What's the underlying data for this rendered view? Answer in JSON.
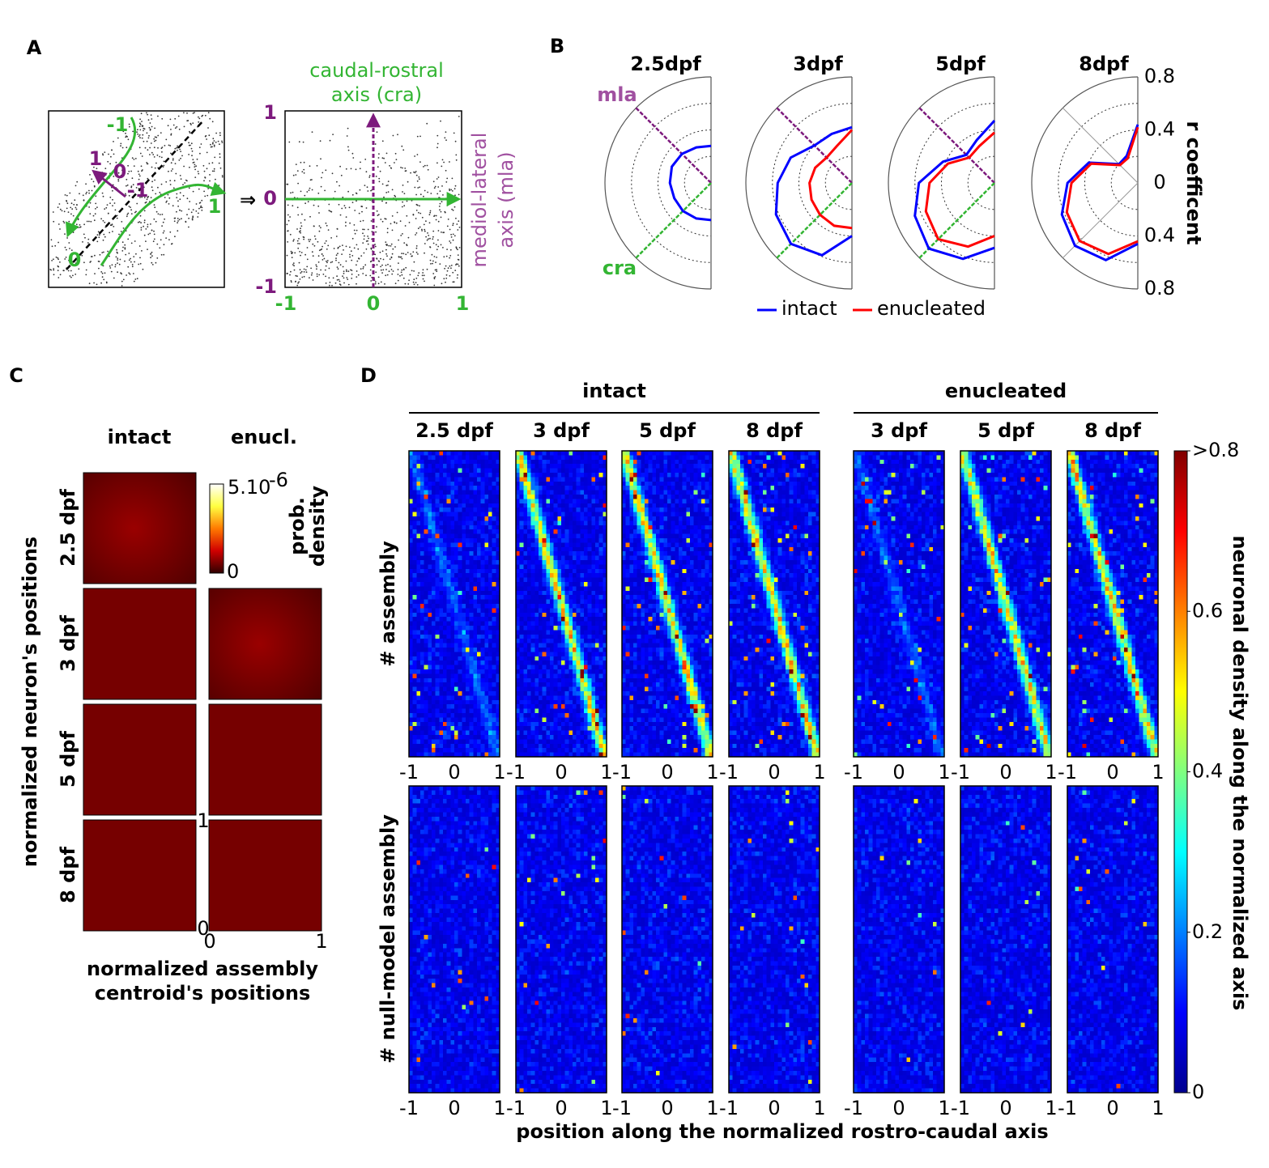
{
  "panel_a": {
    "label": "A",
    "sketch_labels": [
      "-1",
      "1",
      "0",
      "-1",
      "1",
      "0"
    ],
    "arrow": "⇒",
    "axis_title": [
      "caudal-rostral",
      "axis (cra)"
    ],
    "side_title": [
      "mediol-lateral",
      "axis (mla)"
    ],
    "yticks": [
      1,
      0,
      -1
    ],
    "xticks": [
      -1,
      0,
      1
    ]
  },
  "panel_b": {
    "label": "B",
    "mla": "mla",
    "cra": "cra",
    "rlim": [
      0,
      0.8
    ],
    "rgrid": [
      0.2,
      0.4,
      0.6,
      0.8
    ],
    "rticks": [
      0.8,
      0.4,
      0,
      0.4,
      0.8
    ],
    "r_label": "r coefficent",
    "theta": [
      90,
      112.5,
      135,
      157.5,
      180,
      202.5,
      225,
      247.5,
      270
    ],
    "series": [
      {
        "name": "intact",
        "color": "#0000ff"
      },
      {
        "name": "enucleated",
        "color": "#ff0000"
      }
    ],
    "plots": [
      {
        "title": "2.5dpf",
        "curves": [
          [
            0.28,
            0.29,
            0.31,
            0.32,
            0.31,
            0.3,
            0.3,
            0.29,
            0.28
          ]
        ]
      },
      {
        "title": "3dpf",
        "curves": [
          [
            0.42,
            0.4,
            0.4,
            0.5,
            0.56,
            0.62,
            0.65,
            0.59,
            0.4
          ],
          [
            0.4,
            0.3,
            0.27,
            0.3,
            0.32,
            0.33,
            0.34,
            0.35,
            0.34
          ]
        ]
      },
      {
        "title": "5dpf",
        "curves": [
          [
            0.47,
            0.35,
            0.3,
            0.42,
            0.57,
            0.65,
            0.7,
            0.62,
            0.49
          ],
          [
            0.38,
            0.3,
            0.27,
            0.38,
            0.49,
            0.56,
            0.6,
            0.52,
            0.4
          ]
        ]
      },
      {
        "title": "8dpf",
        "curves": [
          [
            0.44,
            0.22,
            0.2,
            0.4,
            0.53,
            0.62,
            0.67,
            0.63,
            0.46
          ],
          [
            0.42,
            0.2,
            0.19,
            0.38,
            0.5,
            0.58,
            0.62,
            0.58,
            0.44
          ]
        ]
      }
    ]
  },
  "panel_c": {
    "label": "C",
    "columns": [
      "intact",
      "enucl."
    ],
    "rows": [
      "2.5 dpf",
      "3 dpf",
      "5 dpf",
      "8 dpf"
    ],
    "colorbar": {
      "max": "5.10",
      "exponent": "-6",
      "min": "0",
      "title": [
        "prob.",
        "density"
      ]
    },
    "yticks": [
      1,
      0
    ],
    "xticks": [
      0,
      1
    ],
    "ylabel": "normalized neuron's positions",
    "xlabel": [
      "normalized assembly",
      "centroid's positions"
    ]
  },
  "panel_d": {
    "label": "D",
    "groups": [
      {
        "name": "intact",
        "columns": [
          "2.5 dpf",
          "3 dpf",
          "5 dpf",
          "8 dpf"
        ]
      },
      {
        "name": "enucleated",
        "columns": [
          "3 dpf",
          "5 dpf",
          "8 dpf"
        ]
      }
    ],
    "xlim": [
      -1,
      1
    ],
    "xticks": [
      -1,
      0,
      1
    ],
    "ylabels": [
      "# assembly",
      "# null-model assembly"
    ],
    "xlabel": "position along the normalized rostro-caudal axis",
    "colorbar": {
      "title": "neuronal density along the normalized axis",
      "clim": [
        0,
        0.8
      ],
      "ticks": [
        {
          "value": 0.8,
          "label": ">0.8"
        },
        0.6,
        0.4,
        0.2,
        0
      ]
    }
  }
}
